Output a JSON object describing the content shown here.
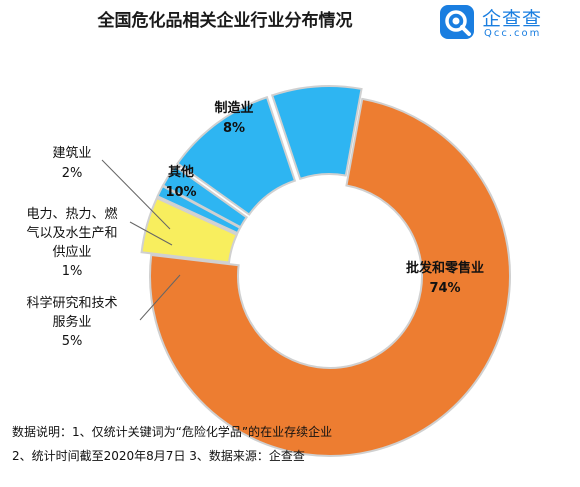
{
  "header": {
    "title": "全国危化品相关企业行业分布情况",
    "logo_name": "企查查",
    "logo_domain": "Qcc.com"
  },
  "colors": {
    "orange": "#ED7D31",
    "blue": "#2EB5F2",
    "yellow": "#F8EE5E",
    "background": "#FFFFFF"
  },
  "chart_data": {
    "type": "pie",
    "title": "全国危化品相关企业行业分布情况",
    "series": [
      {
        "label": "批发和零售业",
        "value": 74,
        "value_label": "74%"
      },
      {
        "label": "科学研究和技术服务业",
        "value": 5,
        "value_label": "5%"
      },
      {
        "label": "电力、热力、燃气以及水生产和供应业",
        "value": 1,
        "value_label": "1%"
      },
      {
        "label": "建筑业",
        "value": 2,
        "value_label": "2%"
      },
      {
        "label": "其他",
        "value": 10,
        "value_label": "10%"
      },
      {
        "label": "制造业",
        "value": 8,
        "value_label": "8%"
      }
    ]
  },
  "labels": {
    "wholesale": {
      "name": "批发和零售业",
      "pct": "74%"
    },
    "manufacturing": {
      "name": "制造业",
      "pct": "8%"
    },
    "other": {
      "name": "其他",
      "pct": "10%"
    },
    "construction": {
      "name": "建筑业",
      "pct": "2%"
    },
    "utilities": {
      "line1": "电力、热力、燃",
      "line2": "气以及水生产和",
      "line3": "供应业",
      "pct": "1%"
    },
    "science": {
      "line1": "科学研究和技术",
      "line2": "服务业",
      "pct": "5%"
    }
  },
  "notes": {
    "line1": "数据说明：1、仅统计关键词为“危险化学品”的在业存续企业",
    "line2": "2、统计时间截至2020年8月7日   3、数据来源：企查查"
  }
}
